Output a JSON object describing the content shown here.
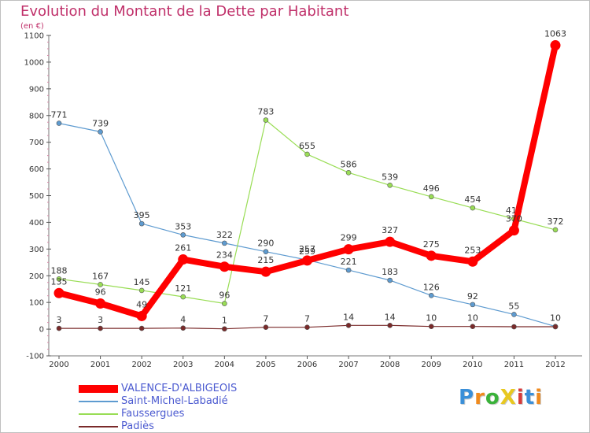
{
  "chart_data": {
    "type": "line",
    "title": "Evolution du Montant de la Dette par Habitant",
    "subtitle": "(en €)",
    "categories": [
      "2000",
      "2001",
      "2002",
      "2003",
      "2004",
      "2005",
      "2006",
      "2007",
      "2008",
      "2009",
      "2010",
      "2011",
      "2012"
    ],
    "ylim": [
      -100,
      1100
    ],
    "yticks": [
      "-100",
      "0",
      "100",
      "200",
      "300",
      "400",
      "500",
      "600",
      "700",
      "800",
      "900",
      "1000",
      "1100"
    ],
    "grid": false,
    "legend_position": "bottom-left",
    "series": [
      {
        "name": "Saint-Michel-Labadié",
        "color": "#5e9bd0",
        "emphasis": false,
        "values": [
          771,
          739,
          395,
          353,
          322,
          290,
          259,
          221,
          183,
          126,
          92,
          55,
          10
        ],
        "labels": [
          "771",
          "739",
          "395",
          "353",
          "322",
          "290",
          "259",
          "221",
          "183",
          "126",
          "92",
          "55",
          "10"
        ]
      },
      {
        "name": "Faussergues",
        "color": "#99dd55",
        "emphasis": false,
        "values": [
          188,
          167,
          145,
          121,
          96,
          783,
          655,
          586,
          539,
          496,
          454,
          413,
          372
        ],
        "labels": [
          "188",
          "167",
          "145",
          "121",
          "96",
          "783",
          "655",
          "586",
          "539",
          "496",
          "454",
          "413",
          "372"
        ]
      },
      {
        "name": "Padiès",
        "color": "#7a2a2a",
        "emphasis": false,
        "values": [
          3,
          3,
          3,
          4,
          1,
          7,
          7,
          14,
          14,
          10,
          10,
          9,
          9
        ],
        "labels": [
          "3",
          "3",
          "",
          "4",
          "1",
          "7",
          "7",
          "14",
          "14",
          "10",
          "10",
          "",
          ""
        ]
      },
      {
        "name": "VALENCE-D'ALBIGEOIS",
        "color": "#ff0000",
        "emphasis": true,
        "values": [
          135,
          96,
          49,
          261,
          234,
          215,
          257,
          299,
          327,
          275,
          253,
          370,
          1063
        ],
        "labels": [
          "135",
          "96",
          "49",
          "261",
          "234",
          "215",
          "257",
          "299",
          "327",
          "275",
          "253",
          "370",
          "1063"
        ]
      }
    ]
  },
  "legend": {
    "items": [
      {
        "label": "VALENCE-D'ALBIGEOIS",
        "color": "#ff0000"
      },
      {
        "label": "Saint-Michel-Labadié",
        "color": "#5e9bd0"
      },
      {
        "label": "Faussergues",
        "color": "#99dd55"
      },
      {
        "label": "Padiès",
        "color": "#7a2a2a"
      }
    ]
  },
  "brand": {
    "logo_text": "ProXiti",
    "letter_colors": [
      "#3a8fd8",
      "#f08a1c",
      "#3ab23a",
      "#e8c820",
      "#d63a3a",
      "#3a8fd8",
      "#f08a1c"
    ]
  }
}
